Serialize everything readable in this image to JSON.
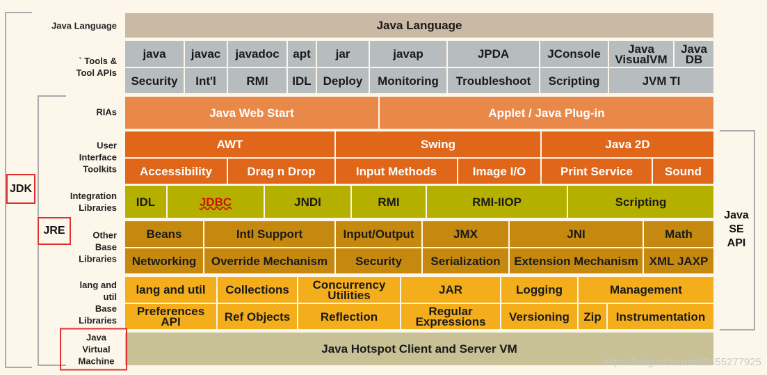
{
  "rows": [
    {
      "label": [
        "Java Language"
      ],
      "layers": [
        [
          "Java Language"
        ]
      ]
    },
    {
      "label": [
        "` Tools &",
        "Tool APIs"
      ],
      "layers": [
        [
          "java",
          "javac",
          "javadoc",
          "apt",
          "jar",
          "javap",
          "JPDA",
          "JConsole",
          "Java VisualVM",
          "Java DB"
        ],
        [
          "Security",
          "Int'l",
          "RMI",
          "IDL",
          "Deploy",
          "Monitoring",
          "Troubleshoot",
          "Scripting",
          "JVM TI"
        ]
      ]
    },
    {
      "label": [
        "RIAs"
      ],
      "layers": [
        [
          "Java Web Start",
          "Applet / Java Plug-in"
        ]
      ]
    },
    {
      "label": [
        "User",
        "Interface",
        "Toolkits"
      ],
      "layers": [
        [
          "AWT",
          "Swing",
          "Java 2D"
        ],
        [
          "Accessibility",
          "Drag n Drop",
          "Input Methods",
          "Image I/O",
          "Print Service",
          "Sound"
        ]
      ]
    },
    {
      "label": [
        "Integration",
        "Libraries"
      ],
      "layers": [
        [
          "IDL",
          "JDBC",
          "JNDI",
          "RMI",
          "RMI-IIOP",
          "Scripting"
        ]
      ]
    },
    {
      "label": [
        "Other",
        "Base",
        "Libraries"
      ],
      "layers": [
        [
          "Beans",
          "Intl Support",
          "Input/Output",
          "JMX",
          "JNI",
          "Math"
        ],
        [
          "Networking",
          "Override Mechanism",
          "Security",
          "Serialization",
          "Extension Mechanism",
          "XML JAXP"
        ]
      ]
    },
    {
      "label": [
        "lang and",
        "util",
        "Base",
        "Libraries"
      ],
      "layers": [
        [
          "lang and util",
          "Collections",
          "Concurrency Utilities",
          "JAR",
          "Logging",
          "Management"
        ],
        [
          "Preferences API",
          "Ref Objects",
          "Reflection",
          "Regular Expressions",
          "Versioning",
          "Zip",
          "Instrumentation"
        ]
      ]
    },
    {
      "label": [
        "Java",
        "Virtual",
        "Machine"
      ],
      "layers": [
        [
          "Java Hotspot Client and Server VM"
        ]
      ]
    }
  ],
  "brackets": {
    "jdk": "JDK",
    "jre": "JRE",
    "api": [
      "Java",
      "SE",
      "API"
    ]
  },
  "watermark": "https://blog.csdn.net/li3455277925"
}
